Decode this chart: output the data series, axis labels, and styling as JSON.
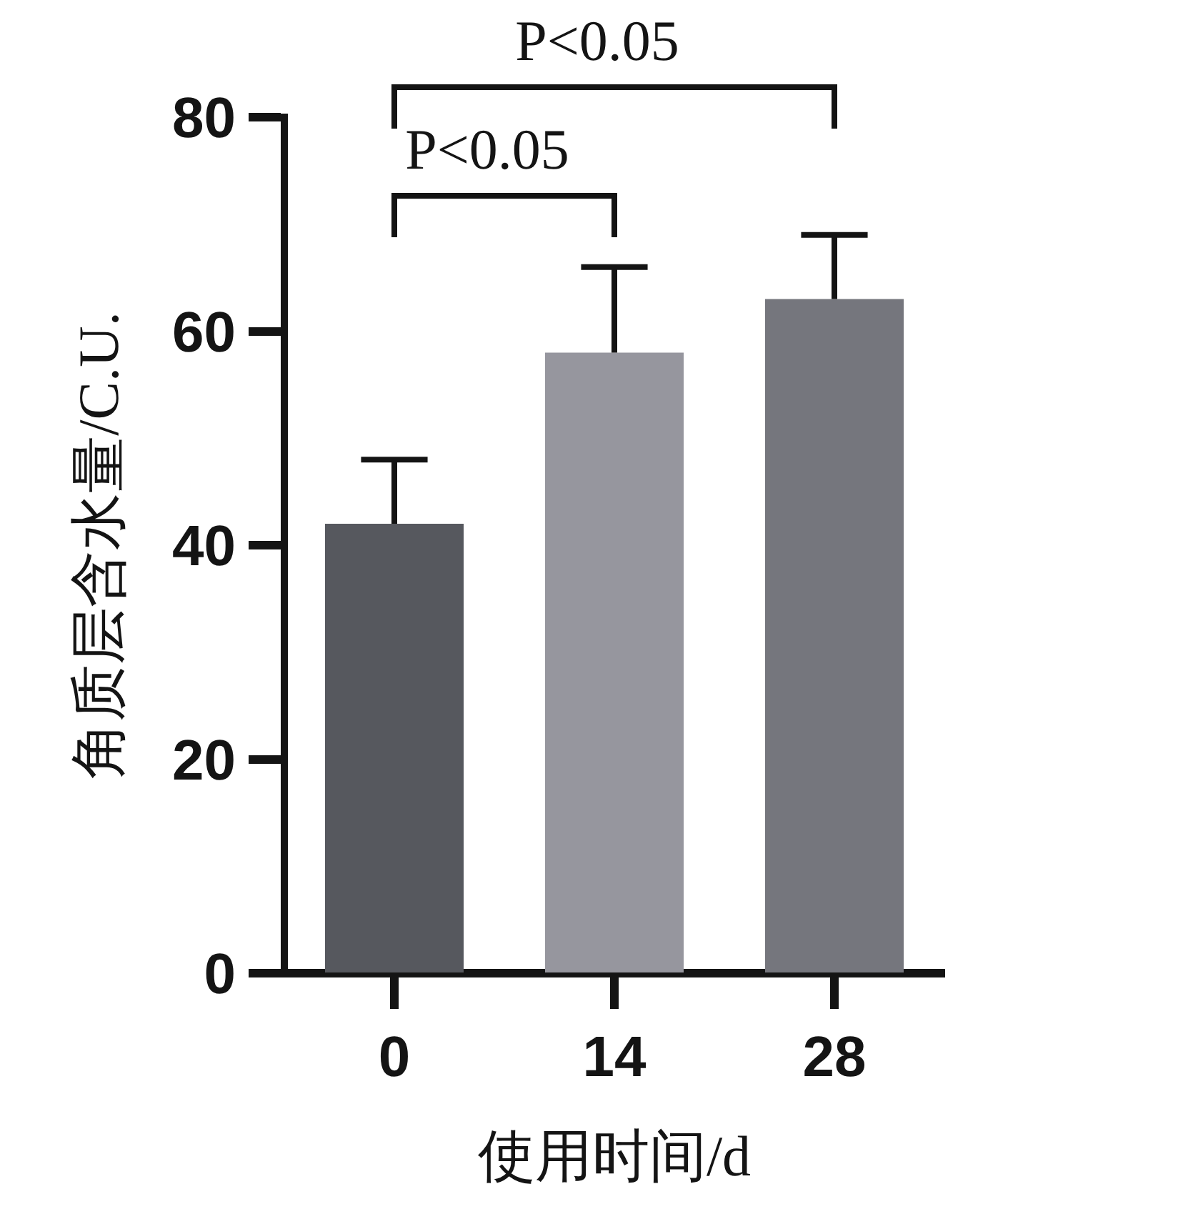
{
  "chart_data": {
    "type": "bar",
    "categories": [
      "0",
      "14",
      "28"
    ],
    "values": [
      42,
      58,
      63
    ],
    "colors": [
      "#56585e",
      "#96969e",
      "#75767d"
    ],
    "errors": [
      [
        42,
        48
      ],
      [
        58,
        66
      ],
      [
        63,
        69
      ]
    ],
    "xlabel": "使用时间/d",
    "ylabel": "角质层含水量/C.U.",
    "ylim": [
      0,
      80
    ],
    "yticks": [
      0,
      20,
      40,
      60,
      80
    ],
    "annotations": [
      "P<0.05",
      "P<0.05"
    ]
  }
}
